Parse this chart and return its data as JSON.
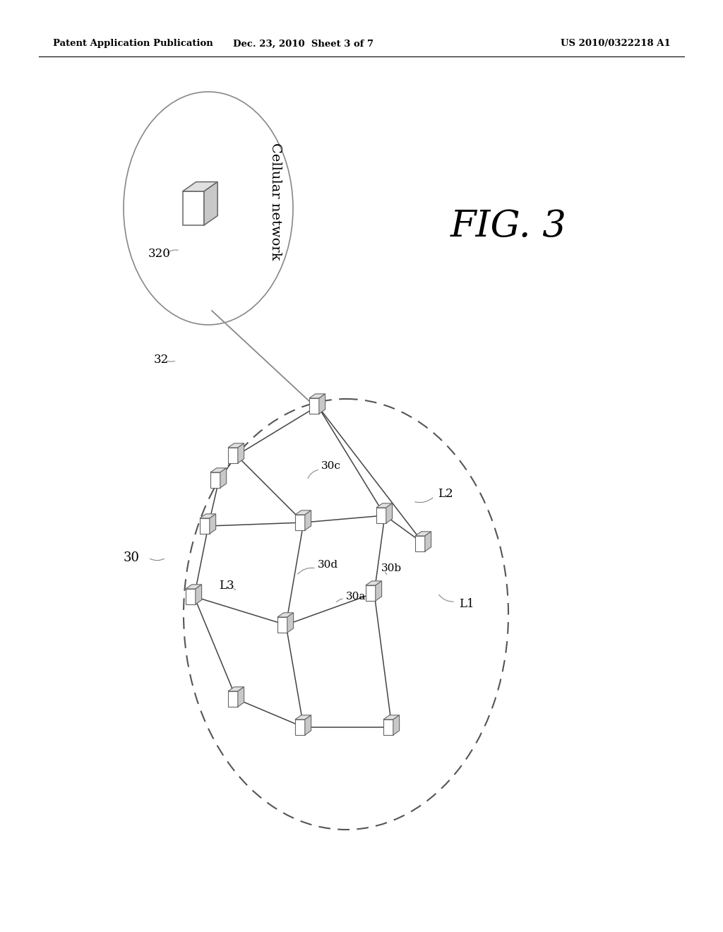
{
  "header_left": "Patent Application Publication",
  "header_center": "Dec. 23, 2010  Sheet 3 of 7",
  "header_right": "US 2010/0322218 A1",
  "fig_label": "FIG. 3",
  "bg_color": "#ffffff",
  "label_32": "32",
  "label_30": "30",
  "label_320": "320",
  "label_cellular": "Cellular network",
  "label_L1": "L1",
  "label_L2": "L2",
  "label_L3": "L3",
  "label_30a": "30a",
  "label_30b": "30b",
  "label_30c": "30c",
  "label_30d": "30d"
}
